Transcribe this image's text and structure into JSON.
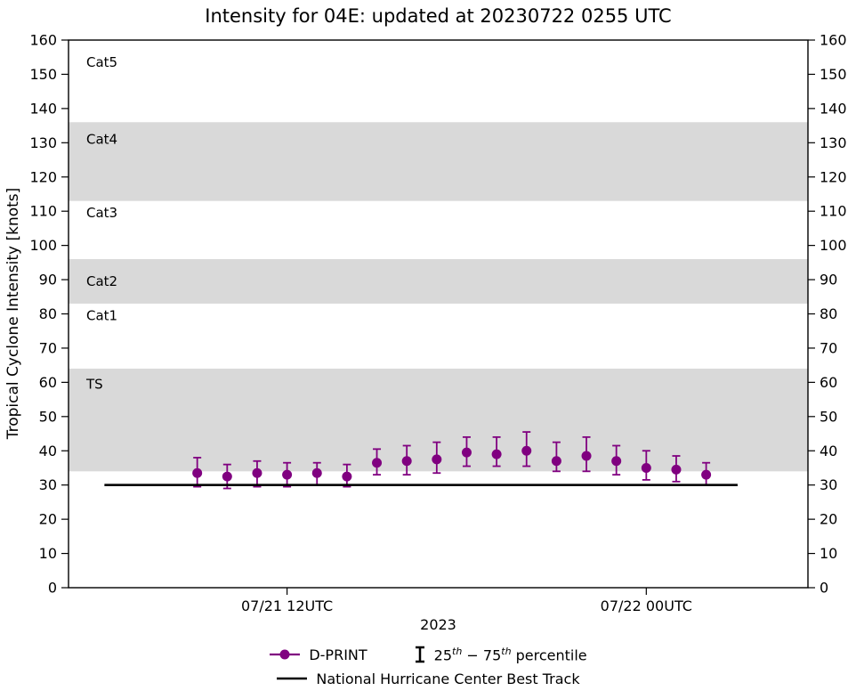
{
  "chart_data": {
    "type": "line",
    "title": "Intensity for 04E: updated at 20230722 0255 UTC",
    "xlabel": "2023",
    "ylabel": "Tropical Cyclone Intensity [knots]",
    "ylim": [
      0,
      160
    ],
    "ytick_step": 10,
    "grid": false,
    "x_unit": "hours relative to 07/21 12UTC",
    "xlim": [
      -7.3,
      17.4
    ],
    "xticks": [
      {
        "x": 0,
        "label": "07/21 12UTC"
      },
      {
        "x": 12,
        "label": "07/22 00UTC"
      }
    ],
    "band_fill_color": "#d9d9d9",
    "category_bands": [
      {
        "name": "TS",
        "from": 34,
        "to": 64,
        "shaded": true,
        "label_y": 59.5
      },
      {
        "name": "Cat1",
        "from": 64,
        "to": 83,
        "shaded": false,
        "label_y": 79.5
      },
      {
        "name": "Cat2",
        "from": 83,
        "to": 96,
        "shaded": true,
        "label_y": 89.5
      },
      {
        "name": "Cat3",
        "from": 96,
        "to": 113,
        "shaded": false,
        "label_y": 109.5
      },
      {
        "name": "Cat4",
        "from": 113,
        "to": 136,
        "shaded": true,
        "label_y": 131
      },
      {
        "name": "Cat5",
        "from": 137,
        "to": 160,
        "shaded": false,
        "label_y": 153.5
      }
    ],
    "series": [
      {
        "name": "D-PRINT",
        "type": "errorbar",
        "color": "#800080",
        "x": [
          -3,
          -2,
          -1,
          0,
          1,
          2,
          3,
          4,
          5,
          6,
          7,
          8,
          9,
          10,
          11,
          12,
          13,
          14
        ],
        "values": [
          33.5,
          32.5,
          33.5,
          33,
          33.5,
          32.5,
          36.5,
          37,
          37.5,
          39.5,
          39,
          40,
          37,
          38.5,
          37,
          35,
          34.5,
          33
        ],
        "p25": [
          29.5,
          29,
          29.5,
          29.5,
          30,
          29.5,
          33,
          33,
          33.5,
          35.5,
          35.5,
          35.5,
          34,
          34,
          33,
          31.5,
          31,
          30
        ],
        "p75": [
          38,
          36,
          37,
          36.5,
          36.5,
          36,
          40.5,
          41.5,
          42.5,
          44,
          44,
          45.5,
          42.5,
          44,
          41.5,
          40,
          38.5,
          36.5
        ]
      },
      {
        "name": "National Hurricane Center Best Track",
        "type": "line",
        "color": "#000000",
        "x": [
          -6.1,
          15.05
        ],
        "values": [
          30,
          30
        ]
      }
    ],
    "legend": {
      "position": "below",
      "dprint_label": "D-PRINT",
      "errorbar_icon_color": "#000000",
      "percentile": {
        "n1": "25",
        "sup1": "th",
        "mid": " − 75",
        "sup2": "th",
        "tail": " percentile"
      },
      "besttrack_label": "National Hurricane Center Best Track"
    }
  }
}
